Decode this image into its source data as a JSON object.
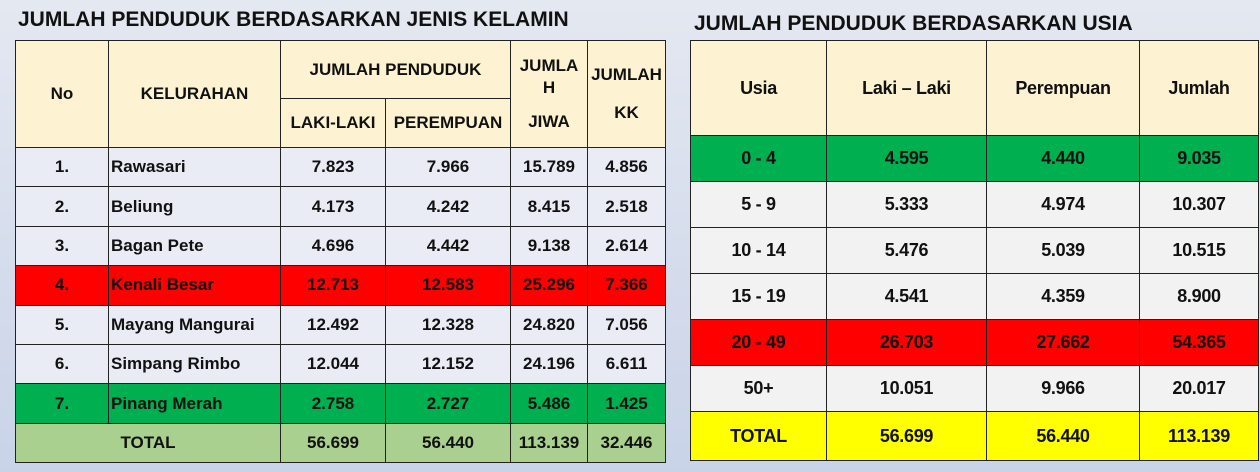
{
  "left": {
    "title": "JUMLAH PENDUDUK BERDASARKAN JENIS KELAMIN",
    "header": {
      "no": "No",
      "kelurahan": "KELURAHAN",
      "jumlah_penduduk": "JUMLAH PENDUDUK",
      "laki": "LAKI-LAKI",
      "perempuan": "PEREMPUAN",
      "jumlah_jiwa": [
        "JUMLA",
        "H",
        "JIWA"
      ],
      "jumlah_kk": [
        "JUMLAH",
        "KK"
      ]
    },
    "rows": [
      [
        "1.",
        "Rawasari",
        "7.823",
        "7.966",
        "15.789",
        "4.856"
      ],
      [
        "2.",
        "Beliung",
        "4.173",
        "4.242",
        "8.415",
        "2.518"
      ],
      [
        "3.",
        "Bagan Pete",
        "4.696",
        "4.442",
        "9.138",
        "2.614"
      ],
      [
        "4.",
        "Kenali Besar",
        "12.713",
        "12.583",
        "25.296",
        "7.366"
      ],
      [
        "5.",
        "Mayang Mangurai",
        "12.492",
        "12.328",
        "24.820",
        "7.056"
      ],
      [
        "6.",
        "Simpang Rimbo",
        "12.044",
        "12.152",
        "24.196",
        "6.611"
      ],
      [
        "7.",
        "Pinang Merah",
        "2.758",
        "2.727",
        "5.486",
        "1.425"
      ]
    ],
    "row_colors": [
      "#e9ecf5",
      "#e9ecf5",
      "#e9ecf5",
      "#ff0000",
      "#e9ecf5",
      "#e9ecf5",
      "#00b050"
    ],
    "total": [
      "TOTAL",
      "56.699",
      "56.440",
      "113.139",
      "32.446"
    ],
    "total_color": "#a9d08e"
  },
  "right": {
    "title": "JUMLAH PENDUDUK BERDASARKAN USIA",
    "header": [
      "Usia",
      "Laki – Laki",
      "Perempuan",
      "Jumlah"
    ],
    "rows": [
      [
        "0 - 4",
        "4.595",
        "4.440",
        "9.035"
      ],
      [
        "5 - 9",
        "5.333",
        "4.974",
        "10.307"
      ],
      [
        "10 - 14",
        "5.476",
        "5.039",
        "10.515"
      ],
      [
        "15 - 19",
        "4.541",
        "4.359",
        "8.900"
      ],
      [
        "20 - 49",
        "26.703",
        "27.662",
        "54.365"
      ],
      [
        "50+",
        "10.051",
        "9.966",
        "20.017"
      ]
    ],
    "row_colors": [
      "#00b050",
      "#f2f2f2",
      "#f2f2f2",
      "#f2f2f2",
      "#ff0000",
      "#f2f2f2"
    ],
    "total": [
      "TOTAL",
      "56.699",
      "56.440",
      "113.139"
    ],
    "total_color": "#ffff00"
  }
}
